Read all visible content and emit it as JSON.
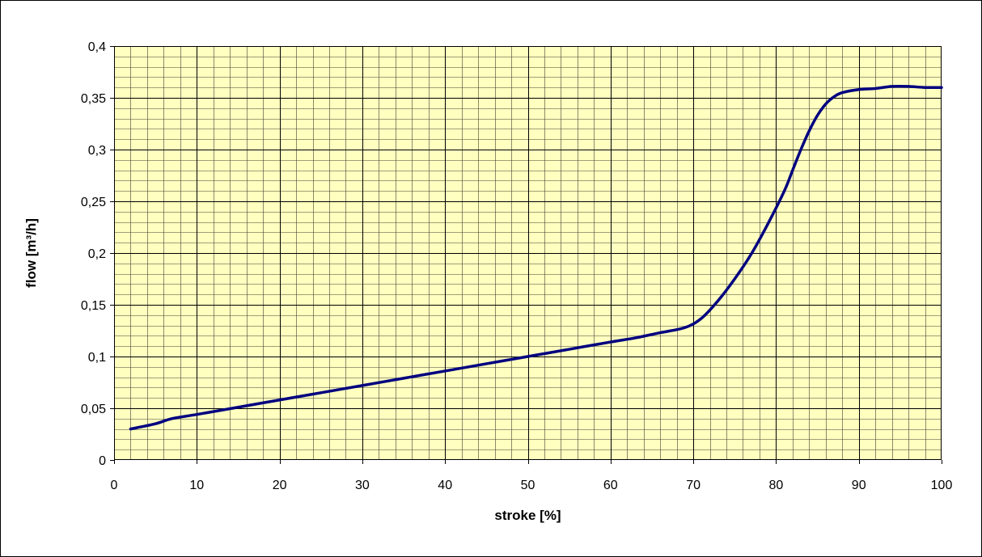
{
  "chart_data": {
    "type": "line",
    "title": "",
    "xlabel": "stroke [%]",
    "ylabel": "flow [m³/h]",
    "xlim": [
      0,
      100
    ],
    "ylim": [
      0,
      0.4
    ],
    "x_ticks": [
      0,
      10,
      20,
      30,
      40,
      50,
      60,
      70,
      80,
      90,
      100
    ],
    "x_tick_labels": [
      "0",
      "10",
      "20",
      "30",
      "40",
      "50",
      "60",
      "70",
      "80",
      "90",
      "100"
    ],
    "y_ticks": [
      0,
      0.05,
      0.1,
      0.15,
      0.2,
      0.25,
      0.3,
      0.35,
      0.4
    ],
    "y_tick_labels": [
      "0",
      "0,05",
      "0,1",
      "0,15",
      "0,2",
      "0,25",
      "0,3",
      "0,35",
      "0,4"
    ],
    "x_minor_step": 2,
    "y_minor_step": 0.01,
    "grid": true,
    "legend": "none",
    "colors": {
      "plot_background": "#FFFFC0",
      "grid": "#000000",
      "line": "#000080",
      "frame": "#000000"
    },
    "series": [
      {
        "x": [
          2,
          5,
          7,
          10,
          15,
          20,
          25,
          30,
          35,
          40,
          45,
          50,
          55,
          60,
          63,
          66,
          69,
          71,
          73,
          75,
          77,
          79,
          81,
          82,
          83,
          84,
          85,
          86,
          87,
          88,
          90,
          92,
          94,
          96,
          98,
          100
        ],
        "y": [
          0.03,
          0.035,
          0.04,
          0.044,
          0.051,
          0.058,
          0.065,
          0.072,
          0.079,
          0.086,
          0.093,
          0.1,
          0.107,
          0.114,
          0.118,
          0.123,
          0.128,
          0.137,
          0.154,
          0.175,
          0.199,
          0.228,
          0.26,
          0.28,
          0.3,
          0.318,
          0.333,
          0.344,
          0.351,
          0.355,
          0.358,
          0.359,
          0.361,
          0.361,
          0.36,
          0.36
        ]
      }
    ]
  }
}
